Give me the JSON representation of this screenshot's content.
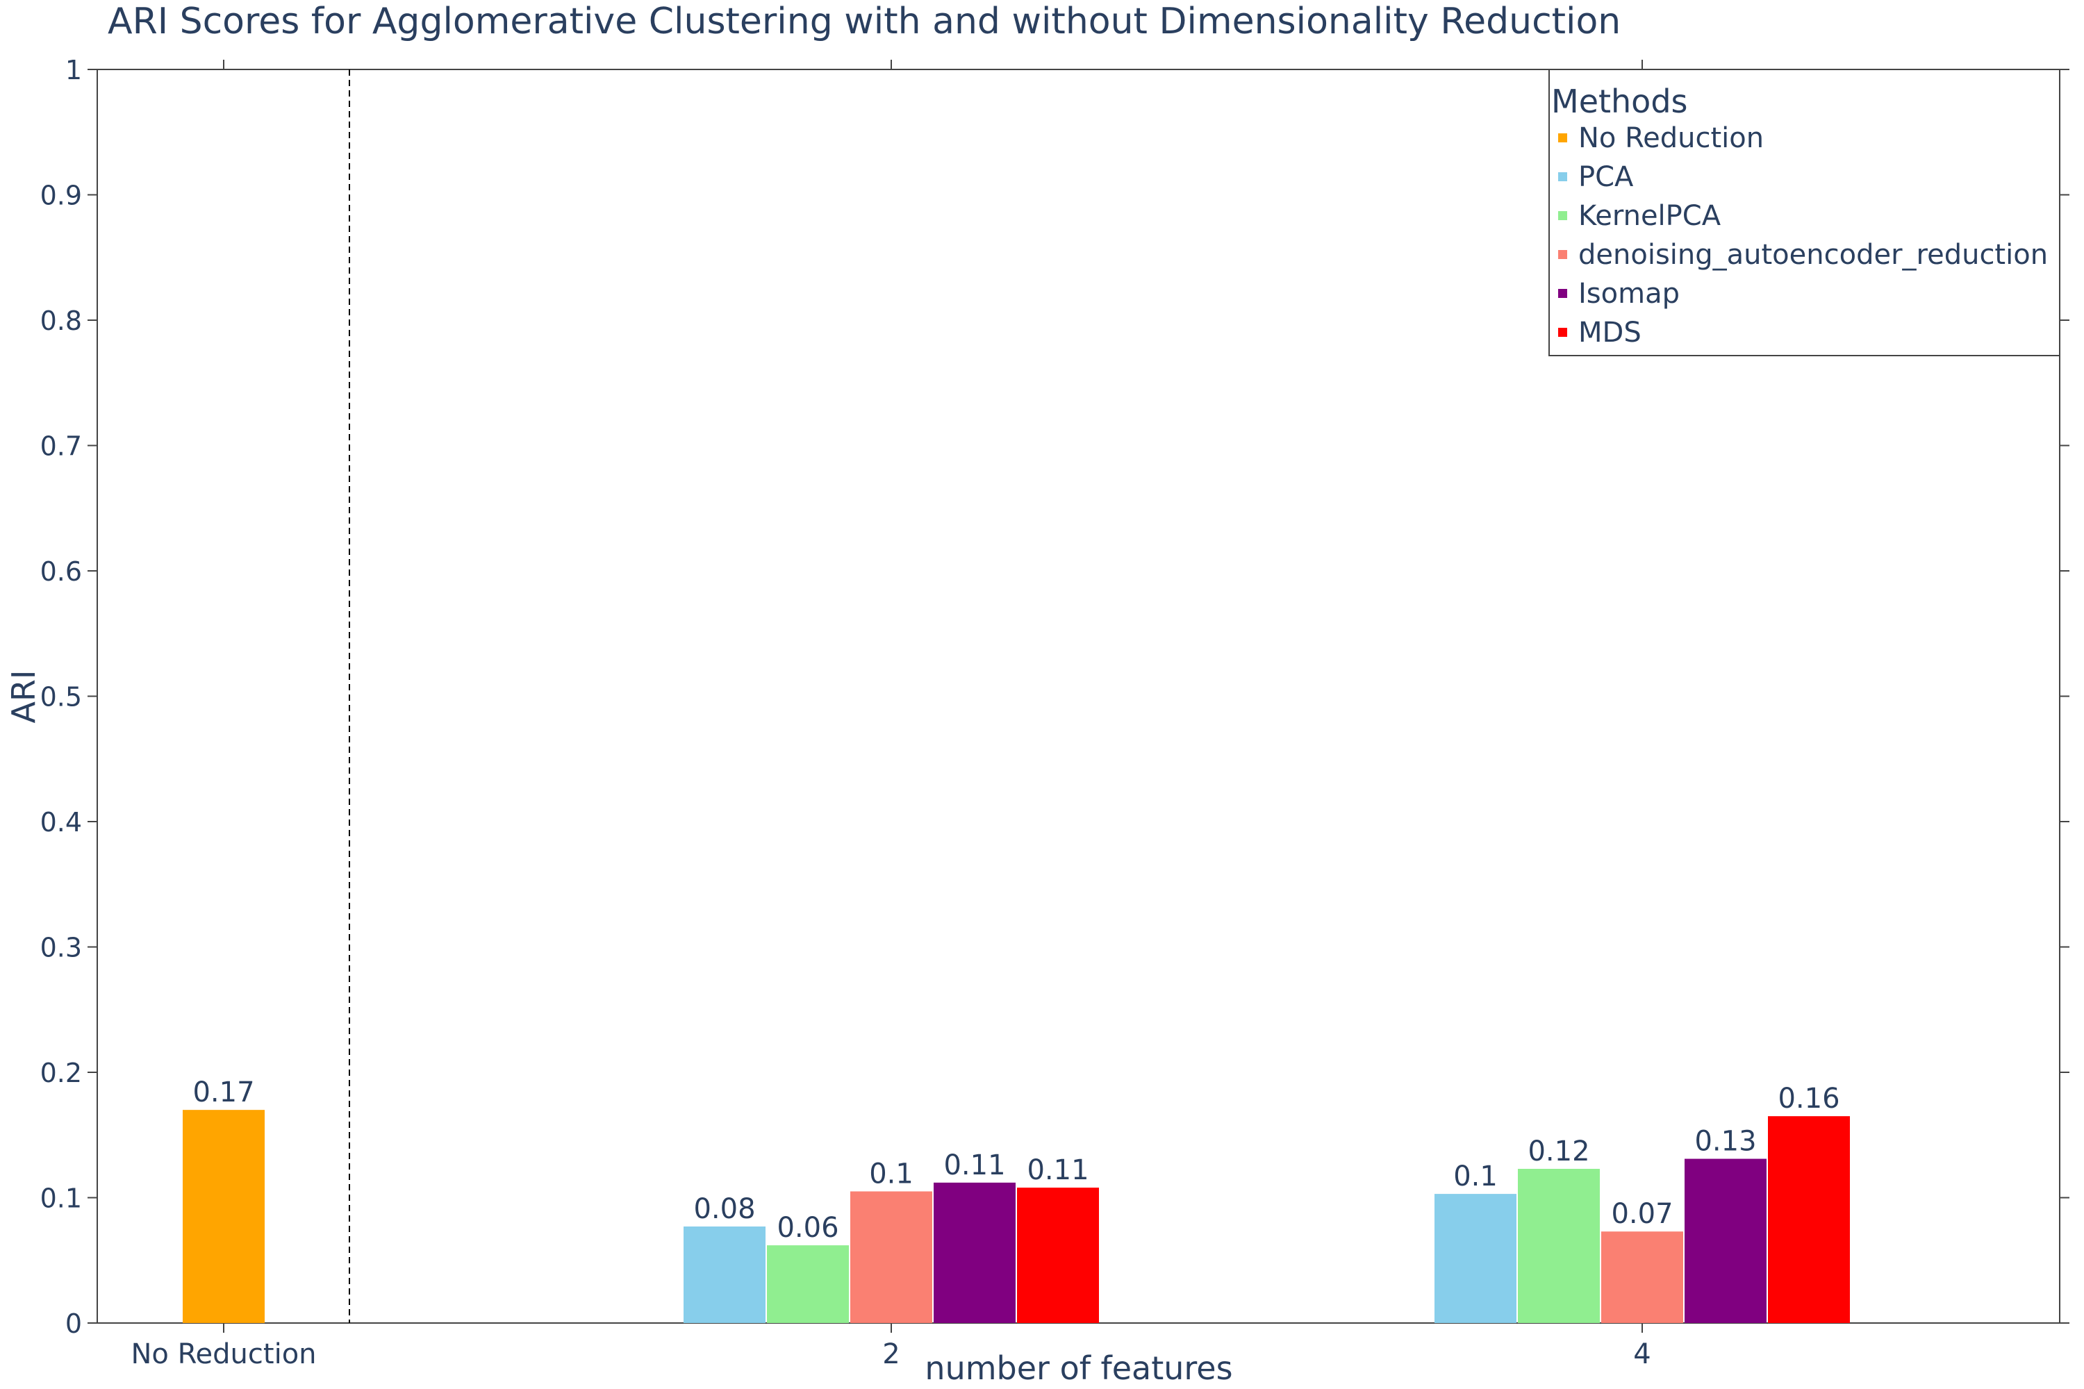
{
  "chart_data": {
    "type": "bar",
    "title": "ARI Scores for Agglomerative Clustering with and without Dimensionality Reduction",
    "xlabel": "number of features",
    "ylabel": "ARI",
    "ylim": [
      0,
      1
    ],
    "y_ticks": [
      "0",
      "0.1",
      "0.2",
      "0.3",
      "0.4",
      "0.5",
      "0.6",
      "0.7",
      "0.8",
      "0.9",
      "1"
    ],
    "categories": [
      "No Reduction",
      "2",
      "4"
    ],
    "grid": false,
    "legend_position": "top-right",
    "legend_title": "Methods",
    "series": [
      {
        "name": "No Reduction",
        "color": "#FFA500",
        "values": [
          0.17,
          null,
          null
        ],
        "labels": [
          "0.17",
          null,
          null
        ]
      },
      {
        "name": "PCA",
        "color": "#87CEEB",
        "values": [
          null,
          0.077,
          0.103
        ],
        "labels": [
          null,
          "0.08",
          "0.1"
        ]
      },
      {
        "name": "KernelPCA",
        "color": "#90EE90",
        "values": [
          null,
          0.062,
          0.123
        ],
        "labels": [
          null,
          "0.06",
          "0.12"
        ]
      },
      {
        "name": "denoising_autoencoder_reduction",
        "color": "#FA8072",
        "values": [
          null,
          0.105,
          0.073
        ],
        "labels": [
          null,
          "0.1",
          "0.07"
        ]
      },
      {
        "name": "Isomap",
        "color": "#800080",
        "values": [
          null,
          0.112,
          0.131
        ],
        "labels": [
          null,
          "0.11",
          "0.13"
        ]
      },
      {
        "name": "MDS",
        "color": "#FF0000",
        "values": [
          null,
          0.108,
          0.165
        ],
        "labels": [
          null,
          "0.11",
          "0.16"
        ]
      }
    ]
  }
}
